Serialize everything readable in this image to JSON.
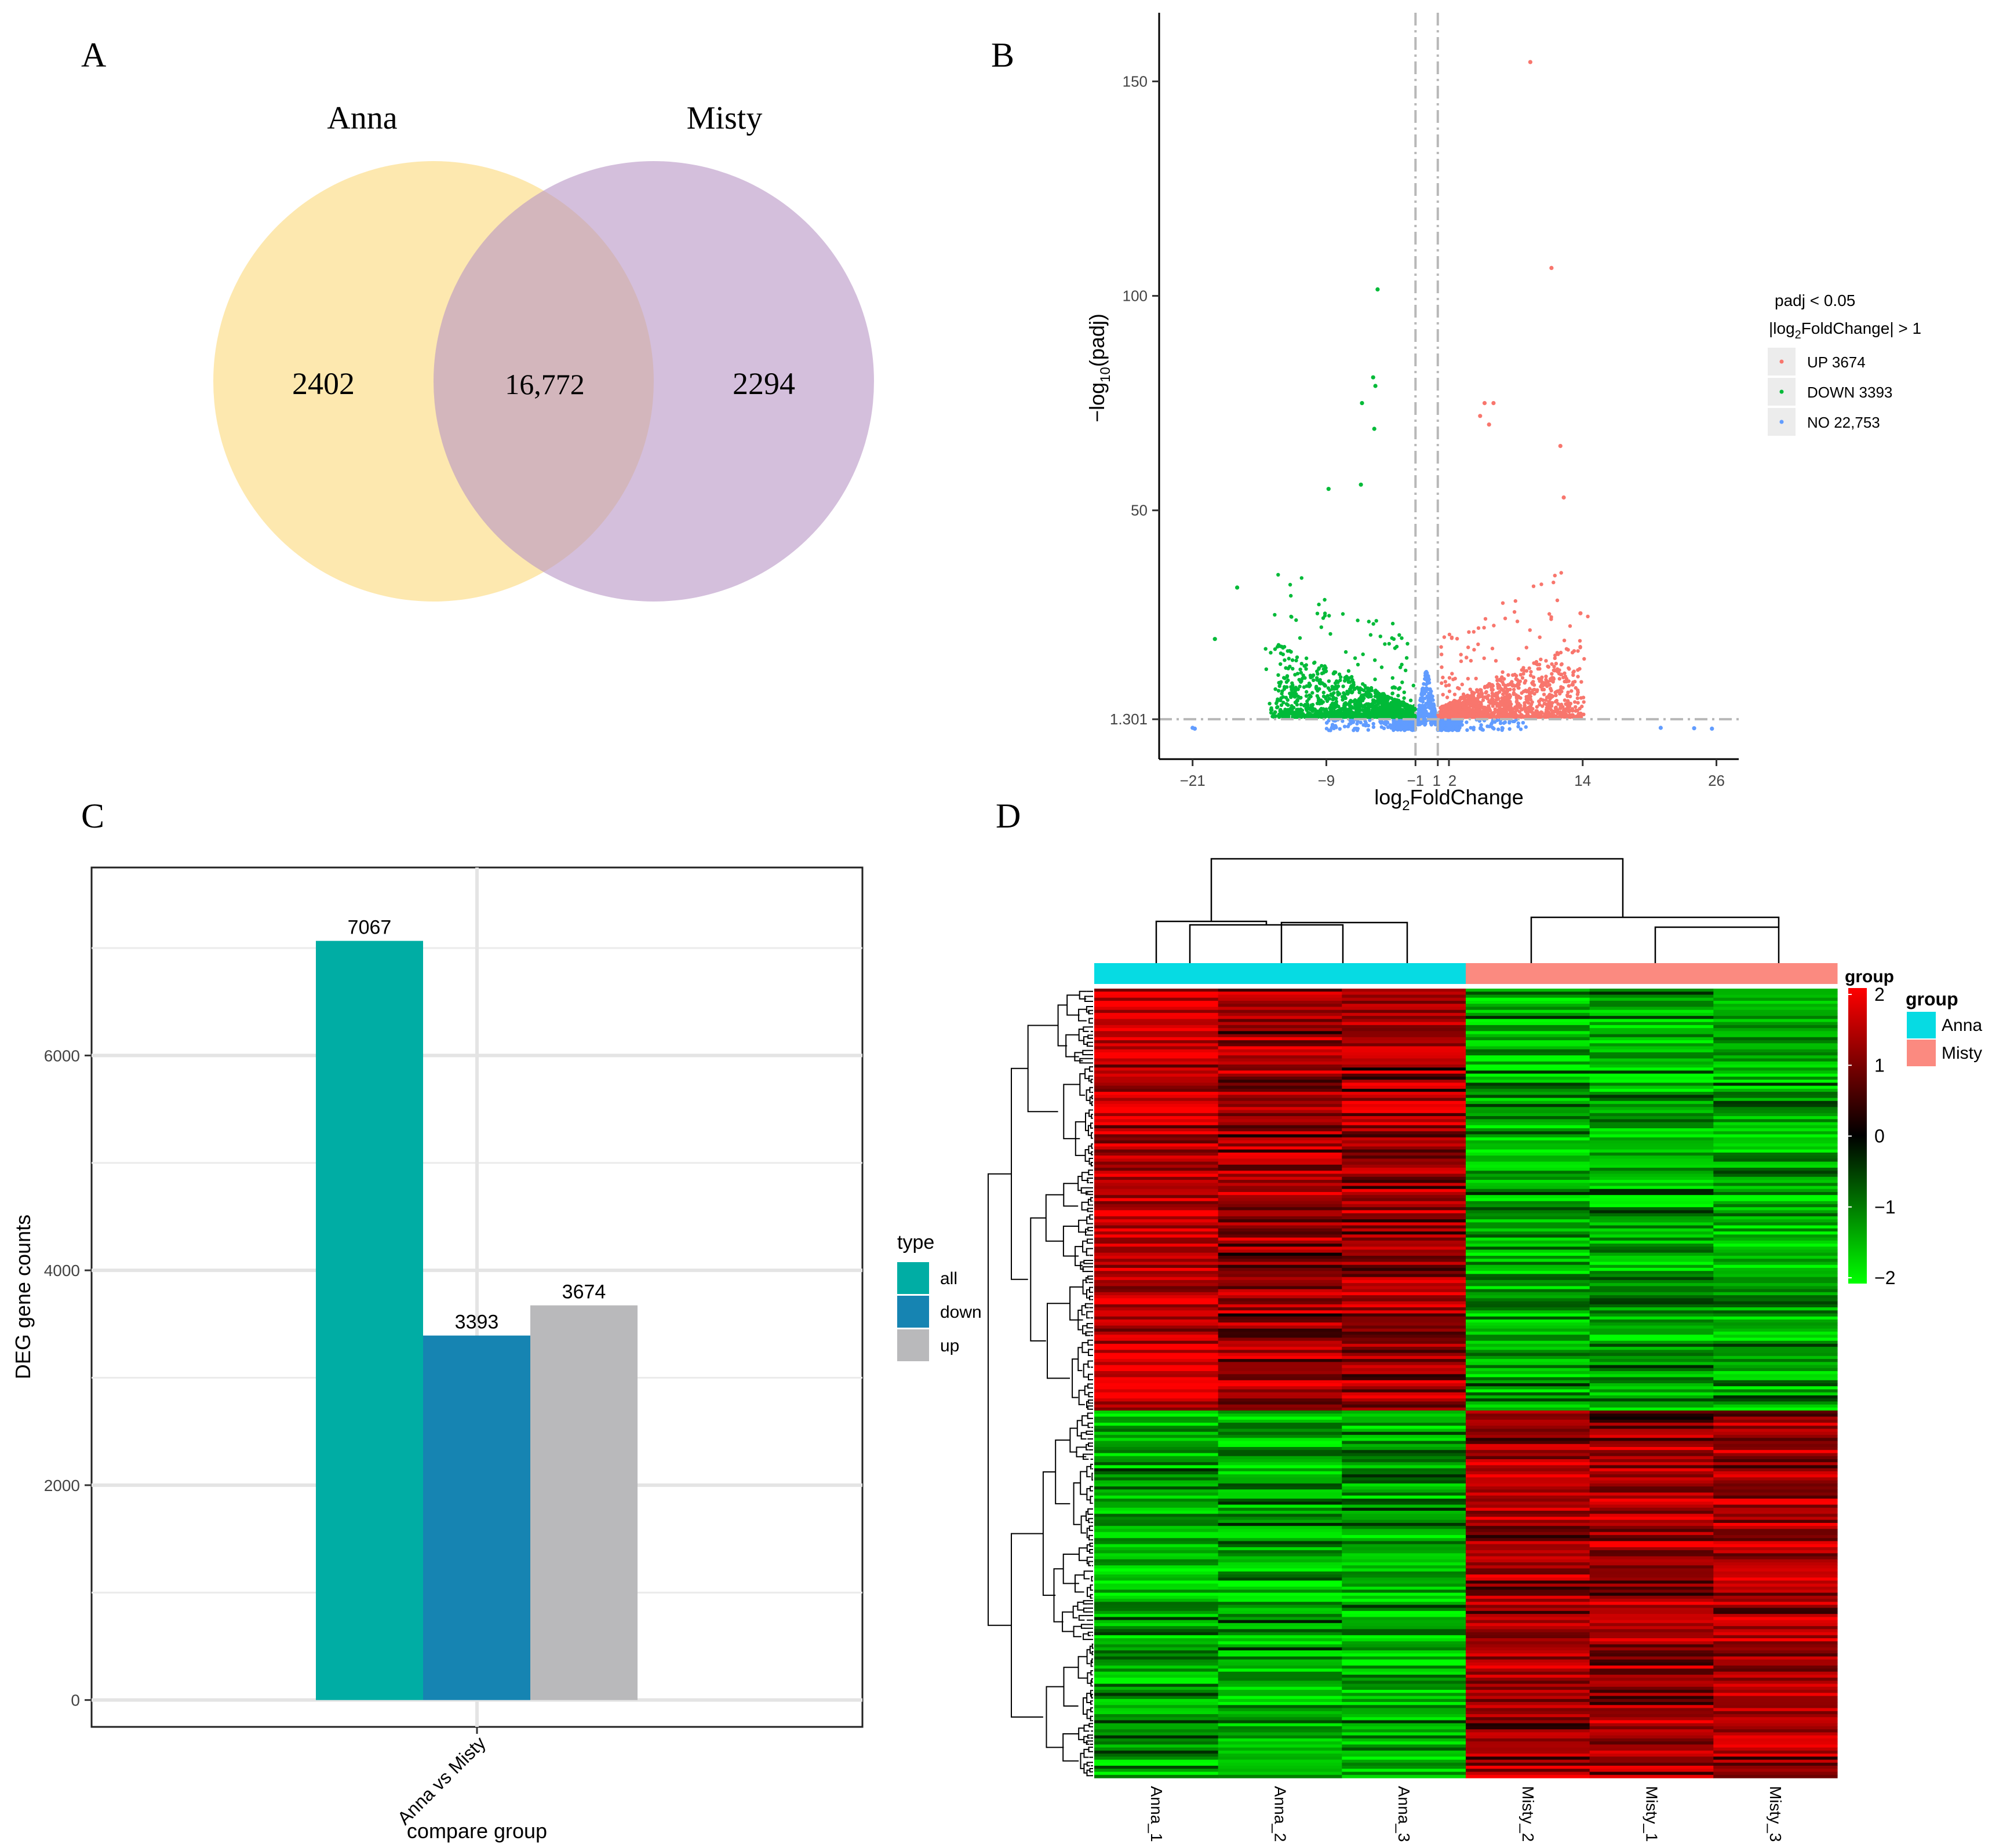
{
  "panels": {
    "a": "A",
    "b": "B",
    "c": "C",
    "d": "D"
  },
  "chart_data": [
    {
      "type": "venn",
      "panel": "A",
      "sets": [
        {
          "name": "Anna",
          "color": "#fbd97a",
          "only": "2402"
        },
        {
          "name": "Misty",
          "color": "#b895c4",
          "only": "2294"
        }
      ],
      "overlap": "16,772"
    },
    {
      "type": "scatter",
      "panel": "B",
      "subtype": "volcano",
      "xlabel": "log2FoldChange",
      "ylabel": "-log10(padj)",
      "xticks": [
        "-21",
        "-9",
        "-1",
        "1",
        "2",
        "14",
        "26"
      ],
      "yticks": [
        "1.301",
        "50",
        "100",
        "150"
      ],
      "xlim": [
        -24,
        28
      ],
      "ylim": [
        -8,
        166
      ],
      "thresholds": {
        "padj_line": 1.301,
        "fc_lines": [
          -1,
          1
        ]
      },
      "legend": {
        "title1": "padj < 0.05",
        "title2": "|log2FoldChange| > 1",
        "items": [
          {
            "label": "UP 3674",
            "color": "#f8766d"
          },
          {
            "label": "DOWN 3393",
            "color": "#00ba38"
          },
          {
            "label": "NO  22,753",
            "color": "#619cff"
          }
        ]
      },
      "highlight_points": [
        {
          "x": 9.3,
          "y": 154.5,
          "group": "up"
        },
        {
          "x": 11.2,
          "y": 106.5,
          "group": "up"
        },
        {
          "x": -4.4,
          "y": 101.5,
          "group": "down"
        },
        {
          "x": -4.8,
          "y": 81.0,
          "group": "down"
        },
        {
          "x": -4.6,
          "y": 79.0,
          "group": "down"
        },
        {
          "x": -5.8,
          "y": 75.0,
          "group": "down"
        },
        {
          "x": -4.7,
          "y": 69.0,
          "group": "down"
        },
        {
          "x": 5.2,
          "y": 75.0,
          "group": "up"
        },
        {
          "x": 6.0,
          "y": 75.0,
          "group": "up"
        },
        {
          "x": 4.8,
          "y": 72.0,
          "group": "up"
        },
        {
          "x": 5.6,
          "y": 70.0,
          "group": "up"
        },
        {
          "x": 12.0,
          "y": 65.0,
          "group": "up"
        },
        {
          "x": 12.3,
          "y": 53.0,
          "group": "up"
        },
        {
          "x": -8.8,
          "y": 55.0,
          "group": "down"
        },
        {
          "x": -5.9,
          "y": 56.0,
          "group": "down"
        },
        {
          "x": -17.0,
          "y": 32.0,
          "group": "down"
        },
        {
          "x": -19.0,
          "y": 20.0,
          "group": "down"
        },
        {
          "x": 13.8,
          "y": 26.0,
          "group": "up"
        },
        {
          "x": -21.0,
          "y": -0.7,
          "group": "no"
        },
        {
          "x": -20.8,
          "y": -0.9,
          "group": "no"
        },
        {
          "x": 21.0,
          "y": -0.7,
          "group": "no"
        },
        {
          "x": 24.0,
          "y": -0.8,
          "group": "no"
        },
        {
          "x": 25.6,
          "y": -0.9,
          "group": "no"
        }
      ]
    },
    {
      "type": "bar",
      "panel": "C",
      "categories": [
        "Anna vs Misty"
      ],
      "series": [
        {
          "name": "all",
          "color": "#00ada4",
          "values": [
            7067
          ]
        },
        {
          "name": "down",
          "color": "#1684b2",
          "values": [
            3393
          ]
        },
        {
          "name": "up",
          "color": "#b9b9bb",
          "values": [
            3674
          ]
        }
      ],
      "xlabel": "compare group",
      "ylabel": "DEG gene counts",
      "yticks": [
        0,
        2000,
        4000,
        6000
      ],
      "ylim": [
        -250,
        7750
      ],
      "legend_title": "type",
      "grid": true
    },
    {
      "type": "heatmap",
      "panel": "D",
      "columns": [
        "Anna_1",
        "Anna_2",
        "Anna_3",
        "Misty_2",
        "Misty_1",
        "Misty_3"
      ],
      "column_groups": [
        "Anna",
        "Anna",
        "Anna",
        "Misty",
        "Misty",
        "Misty"
      ],
      "group_colors": {
        "Anna": "#06dbe3",
        "Misty": "#fb8a80"
      },
      "annotation_title": "group",
      "legend_title": "group",
      "legend_items": [
        "Anna",
        "Misty"
      ],
      "color_scale": {
        "min": -2,
        "max": 2,
        "ticks": [
          "2",
          "1",
          "0",
          "−1",
          "−2"
        ],
        "low": "#00ff00",
        "mid": "#000000",
        "high": "#ff0000"
      },
      "row_blocks": [
        {
          "fraction": 0.535,
          "values": [
            1.6,
            1.2,
            1.2,
            -1.3,
            -1.3,
            -1.3
          ]
        },
        {
          "fraction": 0.465,
          "values": [
            -1.3,
            -1.3,
            -1.2,
            1.3,
            1.2,
            1.3
          ]
        }
      ]
    }
  ]
}
